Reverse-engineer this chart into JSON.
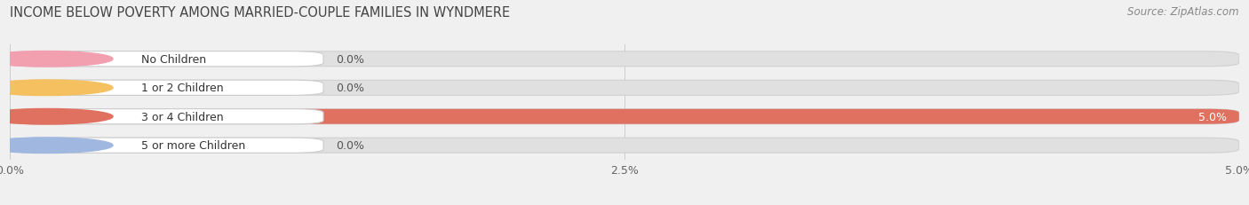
{
  "title": "INCOME BELOW POVERTY AMONG MARRIED-COUPLE FAMILIES IN WYNDMERE",
  "source": "Source: ZipAtlas.com",
  "categories": [
    "No Children",
    "1 or 2 Children",
    "3 or 4 Children",
    "5 or more Children"
  ],
  "values": [
    0.0,
    0.0,
    5.0,
    0.0
  ],
  "bar_colors": [
    "#f2a0b0",
    "#f5c98a",
    "#e07060",
    "#a8c4e8"
  ],
  "label_left_colors": [
    "#f2a0b0",
    "#f5c060",
    "#e07060",
    "#a0b8e0"
  ],
  "xlim": [
    0,
    5.0
  ],
  "xticks": [
    0.0,
    2.5,
    5.0
  ],
  "xtick_labels": [
    "0.0%",
    "2.5%",
    "5.0%"
  ],
  "background_color": "#f0f0f0",
  "bar_bg_color": "#e0e0e0",
  "bar_bg_border": "#d0d0d0",
  "title_fontsize": 10.5,
  "source_fontsize": 8.5,
  "label_fontsize": 9,
  "value_fontsize": 9
}
